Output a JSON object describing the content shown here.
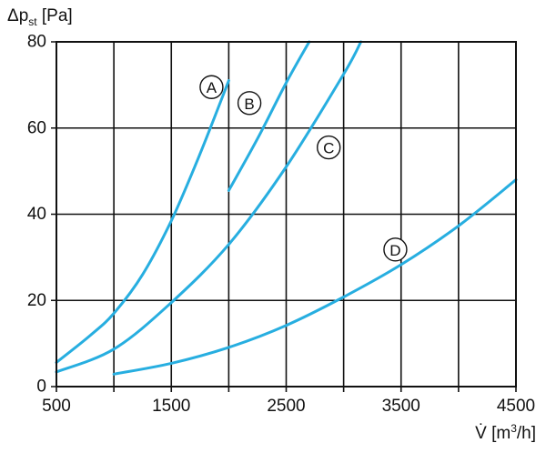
{
  "chart_data": {
    "type": "line",
    "ylabel": {
      "prefix": "Δp",
      "sub": "st",
      "unit": " [Pa]"
    },
    "xlabel": {
      "prefix": "V̇ [m",
      "sup": "3",
      "suffix": "/h]"
    },
    "xlim": [
      500,
      4500
    ],
    "ylim": [
      0,
      80
    ],
    "xticks": [
      500,
      1000,
      1500,
      2000,
      2500,
      3000,
      3500,
      4000,
      4500
    ],
    "xtick_labels": [
      "500",
      "",
      "1500",
      "",
      "2500",
      "",
      "3500",
      "",
      "4500"
    ],
    "yticks": [
      0,
      20,
      40,
      60,
      80
    ],
    "ytick_labels": [
      "0",
      "20",
      "40",
      "60",
      "80"
    ],
    "grid": true,
    "line_color": "#27AEE0",
    "series": [
      {
        "name": "A",
        "x": [
          500,
          800,
          1000,
          1250,
          1500,
          1750,
          2000
        ],
        "y": [
          5.6,
          12,
          17,
          26,
          38.5,
          54,
          71
        ]
      },
      {
        "name": "B",
        "x": [
          2000,
          2250,
          2500,
          2700
        ],
        "y": [
          45.5,
          57.5,
          70.5,
          80
        ]
      },
      {
        "name": "C",
        "x": [
          500,
          1000,
          1500,
          2000,
          2500,
          3000,
          3150
        ],
        "y": [
          3.4,
          8.7,
          19.5,
          33,
          51,
          72.5,
          80
        ]
      },
      {
        "name": "D",
        "x": [
          1000,
          1500,
          2000,
          2500,
          3000,
          3500,
          4000,
          4500
        ],
        "y": [
          2.9,
          5.4,
          9.1,
          14.2,
          20.8,
          28.3,
          37.3,
          48
        ]
      }
    ],
    "annotations": [
      {
        "text": "A",
        "x": 1850,
        "y": 69.5
      },
      {
        "text": "B",
        "x": 2180,
        "y": 65.8
      },
      {
        "text": "C",
        "x": 2870,
        "y": 55.5
      },
      {
        "text": "D",
        "x": 3450,
        "y": 31.8
      }
    ]
  }
}
